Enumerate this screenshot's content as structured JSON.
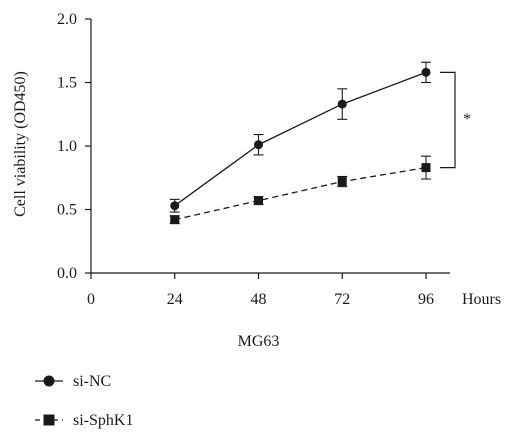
{
  "chart_data": {
    "type": "line",
    "x": [
      24,
      48,
      72,
      96
    ],
    "xlim": [
      0,
      96
    ],
    "ylim": [
      0,
      2.0
    ],
    "x_ticks": [
      "0",
      "24",
      "48",
      "72",
      "96"
    ],
    "y_ticks": [
      "0.0",
      "0.5",
      "1.0",
      "1.5",
      "2.0"
    ],
    "x_unit": "Hours",
    "xlabel": "MG63",
    "ylabel": "Cell viability (OD450)",
    "significance": "*",
    "grid": false,
    "legend_position": "bottom-left",
    "series": [
      {
        "name": "si-NC",
        "marker": "circle",
        "line": "solid",
        "values": [
          0.53,
          1.01,
          1.33,
          1.58
        ],
        "errors": [
          0.05,
          0.08,
          0.12,
          0.08
        ]
      },
      {
        "name": "si-SphK1",
        "marker": "square",
        "line": "dashed",
        "values": [
          0.42,
          0.57,
          0.72,
          0.83
        ],
        "errors": [
          0.03,
          0.03,
          0.04,
          0.09
        ]
      }
    ]
  }
}
